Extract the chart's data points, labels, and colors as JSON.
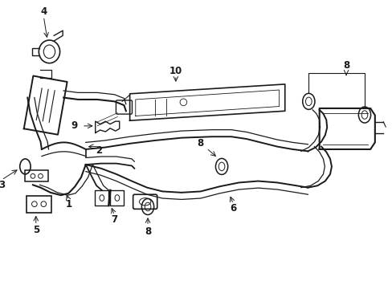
{
  "bg_color": "#ffffff",
  "line_color": "#1a1a1a",
  "lw": 1.0,
  "fig_width": 4.89,
  "fig_height": 3.6,
  "dpi": 100
}
